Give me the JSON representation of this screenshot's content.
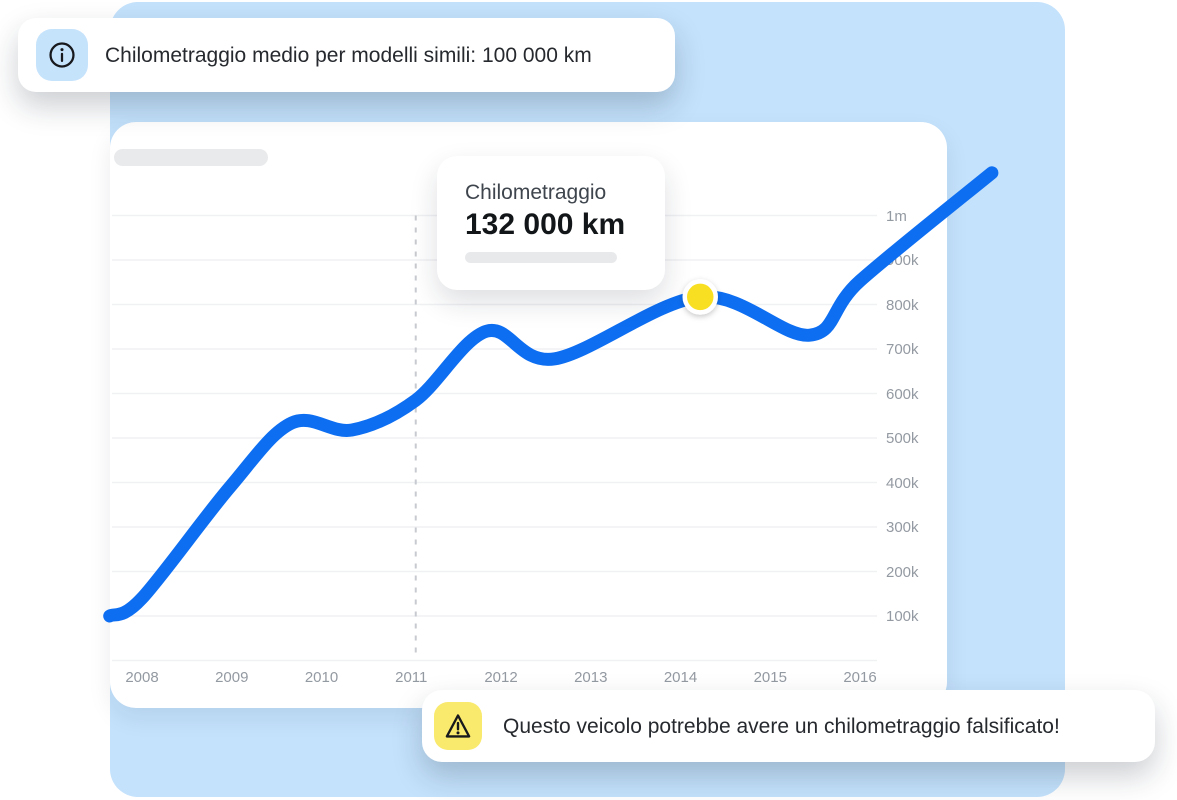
{
  "info_banner": {
    "icon": "info-icon",
    "text": "Chilometraggio medio per modelli simili: 100 000 km",
    "reference_km": "100 000 km"
  },
  "warning_banner": {
    "icon": "warning-icon",
    "text": "Questo veicolo potrebbe avere un chilometraggio falsificato!"
  },
  "tooltip": {
    "label": "Chilometraggio",
    "value": "132 000 km"
  },
  "colors": {
    "panel_blue": "#C4E2FC",
    "line_blue": "#0D6EF2",
    "dot_yellow": "#F8DF22",
    "tile_blue": "#C6E3FC",
    "tile_yellow": "#F9E96D",
    "grid": "#F0F1F3",
    "dashed": "#C7CAD0",
    "axis_text": "#949AA2"
  },
  "chart_data": {
    "type": "line",
    "title": "",
    "xlabel": "",
    "ylabel": "",
    "x_ticks": [
      2008,
      2009,
      2010,
      2011,
      2012,
      2013,
      2014,
      2015,
      2016
    ],
    "y_tick_labels": [
      "1m",
      "900k",
      "800k",
      "700k",
      "600k",
      "500k",
      "400k",
      "300k",
      "200k",
      "100k"
    ],
    "y_range": [
      0,
      1000000
    ],
    "grid": "horizontal",
    "legend": "none",
    "series": [
      {
        "name": "Chilometraggio",
        "categories": [
          2008,
          2009,
          2010,
          2011,
          2012,
          2013,
          2014,
          2015,
          2016
        ],
        "values": [
          140000,
          390000,
          525000,
          580000,
          737000,
          690000,
          805000,
          755000,
          853000
        ]
      }
    ],
    "spline_points": [
      {
        "year": 2007.64,
        "km": 100000
      },
      {
        "year": 2008.0,
        "km": 140000
      },
      {
        "year": 2008.98,
        "km": 390000
      },
      {
        "year": 2009.67,
        "km": 534000
      },
      {
        "year": 2010.34,
        "km": 518000
      },
      {
        "year": 2011.05,
        "km": 585000
      },
      {
        "year": 2011.84,
        "km": 740000
      },
      {
        "year": 2012.6,
        "km": 678000
      },
      {
        "year": 2014.22,
        "km": 817000
      },
      {
        "year": 2015.44,
        "km": 731000
      },
      {
        "year": 2016.0,
        "km": 853000
      },
      {
        "year": 2017.47,
        "km": 1096000
      }
    ],
    "highlight_point": {
      "year": 2014.22,
      "km": 817000
    },
    "dashed_line_year": 2011.05
  }
}
